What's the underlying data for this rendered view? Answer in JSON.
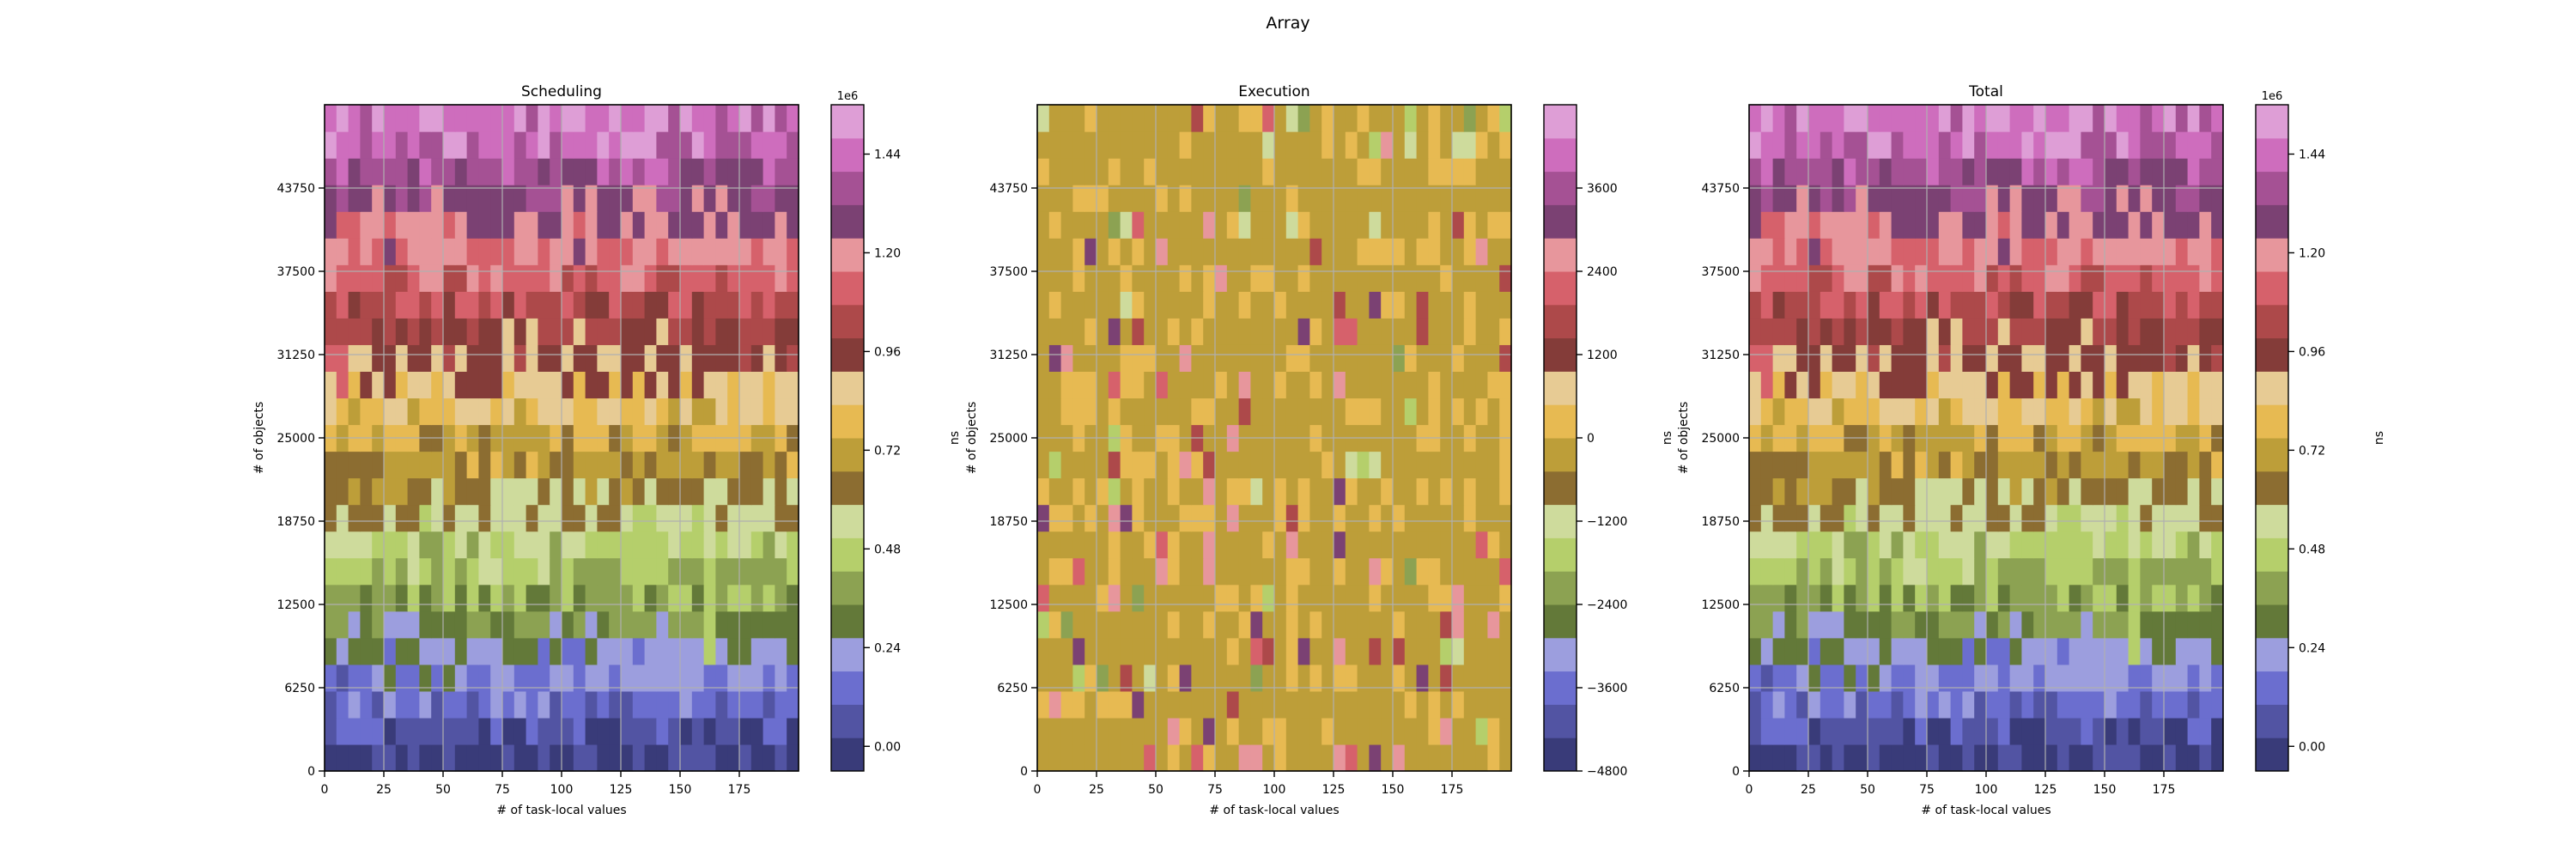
{
  "figure": {
    "title": "Array"
  },
  "chart_data": [
    {
      "type": "contour",
      "title": "Scheduling",
      "xlabel": "# of task-local values",
      "ylabel": "# of objects",
      "xlim": [
        0,
        200
      ],
      "ylim": [
        0,
        50000
      ],
      "x_ticks": [
        "0",
        "25",
        "50",
        "75",
        "100",
        "125",
        "150",
        "175"
      ],
      "x_tick_values": [
        0,
        25,
        50,
        75,
        100,
        125,
        150,
        175
      ],
      "y_ticks": [
        "0",
        "6250",
        "12500",
        "18750",
        "25000",
        "31250",
        "37500",
        "43750"
      ],
      "y_tick_values": [
        0,
        6250,
        12500,
        18750,
        25000,
        31250,
        37500,
        43750
      ],
      "grid": true,
      "colorbar": {
        "label": "ns",
        "offset_text": "1e6",
        "range": [
          -0.06,
          1.56
        ],
        "levels": 20,
        "tick_labels": [
          "0.00",
          "0.24",
          "0.48",
          "0.72",
          "0.96",
          "1.20",
          "1.44"
        ],
        "tick_values": [
          0.0,
          0.24,
          0.48,
          0.72,
          0.96,
          1.2,
          1.44
        ]
      },
      "field": {
        "kind": "ramp",
        "min": -0.02,
        "max": 1.5,
        "noise": 0.12,
        "seed": 11,
        "hotspots": [
          {
            "x": 6,
            "y": 30500,
            "value": 1.15,
            "radius": 3,
            "yradius": 1500
          },
          {
            "x": 163,
            "y": 10200,
            "value": 0.46,
            "radius": 3,
            "yradius": 1500
          },
          {
            "x": 138,
            "y": 10800,
            "value": 0.42,
            "radius": 3,
            "yradius": 1200
          }
        ]
      }
    },
    {
      "type": "contour",
      "title": "Execution",
      "xlabel": "# of task-local values",
      "ylabel": "# of objects",
      "xlim": [
        0,
        200
      ],
      "ylim": [
        0,
        50000
      ],
      "x_ticks": [
        "0",
        "25",
        "50",
        "75",
        "100",
        "125",
        "150",
        "175"
      ],
      "x_tick_values": [
        0,
        25,
        50,
        75,
        100,
        125,
        150,
        175
      ],
      "y_ticks": [
        "0",
        "6250",
        "12500",
        "18750",
        "25000",
        "31250",
        "37500",
        "43750"
      ],
      "y_tick_values": [
        0,
        6250,
        12500,
        18750,
        25000,
        31250,
        37500,
        43750
      ],
      "grid": true,
      "colorbar": {
        "label": "ns",
        "offset_text": "",
        "range": [
          -4800,
          4800
        ],
        "levels": 20,
        "tick_labels": [
          "−4800",
          "−3600",
          "−2400",
          "−1200",
          "0",
          "1200",
          "2400",
          "3600"
        ],
        "tick_values": [
          -4800,
          -3600,
          -2400,
          -1200,
          0,
          1200,
          2400,
          3600
        ]
      },
      "field": {
        "kind": "spikes",
        "base": -100,
        "spike_rate": 0.08,
        "spike_up": 3000,
        "spike_down": -1900,
        "seed": 23
      }
    },
    {
      "type": "contour",
      "title": "Total",
      "xlabel": "# of task-local values",
      "ylabel": "# of objects",
      "xlim": [
        0,
        200
      ],
      "ylim": [
        0,
        50000
      ],
      "x_ticks": [
        "0",
        "25",
        "50",
        "75",
        "100",
        "125",
        "150",
        "175"
      ],
      "x_tick_values": [
        0,
        25,
        50,
        75,
        100,
        125,
        150,
        175
      ],
      "y_ticks": [
        "0",
        "6250",
        "12500",
        "18750",
        "25000",
        "31250",
        "37500",
        "43750"
      ],
      "y_tick_values": [
        0,
        6250,
        12500,
        18750,
        25000,
        31250,
        37500,
        43750
      ],
      "grid": true,
      "colorbar": {
        "label": "ns",
        "offset_text": "1e6",
        "range": [
          -0.06,
          1.56
        ],
        "levels": 20,
        "tick_labels": [
          "0.00",
          "0.24",
          "0.48",
          "0.72",
          "0.96",
          "1.20",
          "1.44"
        ],
        "tick_values": [
          0.0,
          0.24,
          0.48,
          0.72,
          0.96,
          1.2,
          1.44
        ]
      },
      "field": {
        "kind": "ramp",
        "min": -0.02,
        "max": 1.5,
        "noise": 0.12,
        "seed": 11,
        "hotspots": [
          {
            "x": 6,
            "y": 30500,
            "value": 1.15,
            "radius": 3,
            "yradius": 1500
          },
          {
            "x": 163,
            "y": 10200,
            "value": 0.46,
            "radius": 3,
            "yradius": 1200
          },
          {
            "x": 138,
            "y": 10800,
            "value": 0.42,
            "radius": 3,
            "yradius": 1200
          }
        ]
      }
    }
  ],
  "colormap": [
    "#393b79",
    "#5254a3",
    "#6b6ecf",
    "#9c9ede",
    "#637939",
    "#8ca252",
    "#b5cf6b",
    "#cedb9c",
    "#8c6d31",
    "#bd9e39",
    "#e7ba52",
    "#e7cb94",
    "#843c39",
    "#ad494a",
    "#d6616b",
    "#e7969c",
    "#7b4173",
    "#a55194",
    "#ce6dbd",
    "#de9ed6"
  ]
}
